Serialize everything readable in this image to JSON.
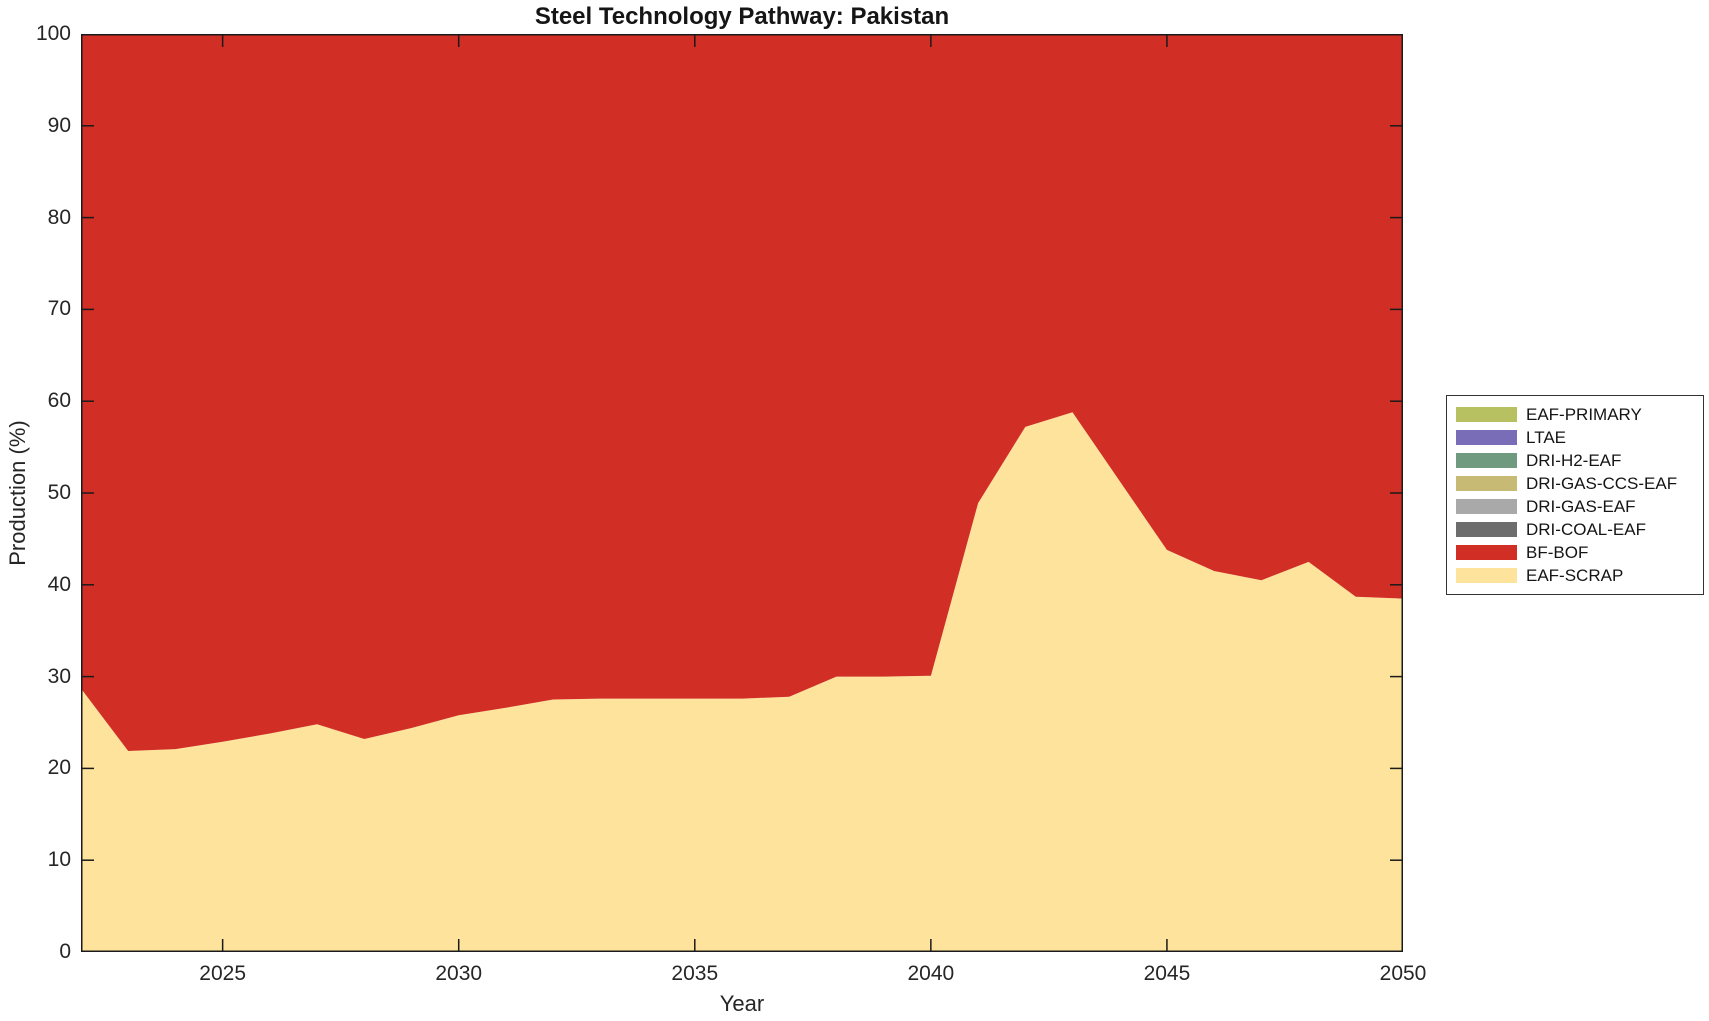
{
  "chart_data": {
    "type": "area",
    "stacked": true,
    "title": "Steel Technology Pathway: Pakistan",
    "xlabel": "Year",
    "ylabel": "Production (%)",
    "xlim": [
      2022,
      2050
    ],
    "ylim": [
      0,
      100
    ],
    "x_ticks": [
      2025,
      2030,
      2035,
      2040,
      2045,
      2050
    ],
    "y_ticks": [
      0,
      10,
      20,
      30,
      40,
      50,
      60,
      70,
      80,
      90,
      100
    ],
    "grid": false,
    "axis_color": "#1a1a1a",
    "background": "#ffffff",
    "legend_position": "right-outside",
    "x": [
      2022,
      2023,
      2024,
      2025,
      2026,
      2027,
      2028,
      2029,
      2030,
      2031,
      2032,
      2033,
      2034,
      2035,
      2036,
      2037,
      2038,
      2039,
      2040,
      2041,
      2042,
      2043,
      2044,
      2045,
      2046,
      2047,
      2048,
      2049,
      2050
    ],
    "series": [
      {
        "name": "EAF-SCRAP",
        "color": "#fde39c",
        "values": [
          28.7,
          21.9,
          22.1,
          22.9,
          23.8,
          24.8,
          23.2,
          24.4,
          25.8,
          26.6,
          27.5,
          27.6,
          27.6,
          27.6,
          27.6,
          27.8,
          30.0,
          30.0,
          30.1,
          48.9,
          57.2,
          58.8,
          51.3,
          43.8,
          41.5,
          40.5,
          42.5,
          38.7,
          38.5
        ]
      },
      {
        "name": "BF-BOF",
        "color": "#d12e26",
        "values": [
          71.3,
          78.1,
          77.9,
          77.1,
          76.2,
          75.2,
          76.8,
          75.6,
          74.2,
          73.4,
          72.5,
          72.4,
          72.4,
          72.4,
          72.4,
          72.2,
          70.0,
          70.0,
          69.9,
          51.1,
          42.8,
          41.2,
          48.7,
          56.2,
          58.5,
          59.5,
          57.5,
          61.3,
          61.5
        ]
      },
      {
        "name": "DRI-COAL-EAF",
        "color": "#6d6d6d",
        "values": [
          0,
          0,
          0,
          0,
          0,
          0,
          0,
          0,
          0,
          0,
          0,
          0,
          0,
          0,
          0,
          0,
          0,
          0,
          0,
          0,
          0,
          0,
          0,
          0,
          0,
          0,
          0,
          0,
          0
        ]
      },
      {
        "name": "DRI-GAS-EAF",
        "color": "#a9a9a9",
        "values": [
          0,
          0,
          0,
          0,
          0,
          0,
          0,
          0,
          0,
          0,
          0,
          0,
          0,
          0,
          0,
          0,
          0,
          0,
          0,
          0,
          0,
          0,
          0,
          0,
          0,
          0,
          0,
          0,
          0
        ]
      },
      {
        "name": "DRI-GAS-CCS-EAF",
        "color": "#c6ba74",
        "values": [
          0,
          0,
          0,
          0,
          0,
          0,
          0,
          0,
          0,
          0,
          0,
          0,
          0,
          0,
          0,
          0,
          0,
          0,
          0,
          0,
          0,
          0,
          0,
          0,
          0,
          0,
          0,
          0,
          0
        ]
      },
      {
        "name": "DRI-H2-EAF",
        "color": "#6f9a80",
        "values": [
          0,
          0,
          0,
          0,
          0,
          0,
          0,
          0,
          0,
          0,
          0,
          0,
          0,
          0,
          0,
          0,
          0,
          0,
          0,
          0,
          0,
          0,
          0,
          0,
          0,
          0,
          0,
          0,
          0
        ]
      },
      {
        "name": "LTAE",
        "color": "#7a6db8",
        "values": [
          0,
          0,
          0,
          0,
          0,
          0,
          0,
          0,
          0,
          0,
          0,
          0,
          0,
          0,
          0,
          0,
          0,
          0,
          0,
          0,
          0,
          0,
          0,
          0,
          0,
          0,
          0,
          0,
          0
        ]
      },
      {
        "name": "EAF-PRIMARY",
        "color": "#b7c161",
        "values": [
          0,
          0,
          0,
          0,
          0,
          0,
          0,
          0,
          0,
          0,
          0,
          0,
          0,
          0,
          0,
          0,
          0,
          0,
          0,
          0,
          0,
          0,
          0,
          0,
          0,
          0,
          0,
          0,
          0
        ]
      }
    ],
    "legend_entries": [
      {
        "name": "EAF-PRIMARY",
        "color": "#b7c161"
      },
      {
        "name": "LTAE",
        "color": "#7a6db8"
      },
      {
        "name": "DRI-H2-EAF",
        "color": "#6f9a80"
      },
      {
        "name": "DRI-GAS-CCS-EAF",
        "color": "#c6ba74"
      },
      {
        "name": "DRI-GAS-EAF",
        "color": "#a9a9a9"
      },
      {
        "name": "DRI-COAL-EAF",
        "color": "#6d6d6d"
      },
      {
        "name": "BF-BOF",
        "color": "#d12e26"
      },
      {
        "name": "EAF-SCRAP",
        "color": "#fde39c"
      }
    ]
  }
}
